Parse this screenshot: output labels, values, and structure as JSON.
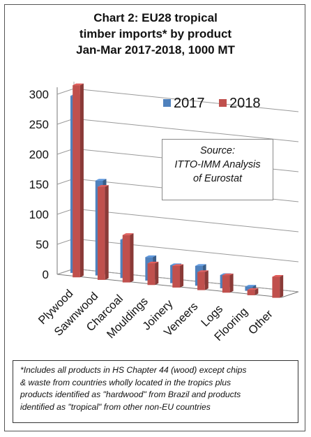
{
  "chart_data": {
    "type": "bar",
    "title_lines": [
      "Chart 2: EU28 tropical",
      "timber imports* by product",
      "Jan-Mar 2017-2018, 1000 MT"
    ],
    "categories": [
      "Plywood",
      "Sawnwood",
      "Charcoal",
      "Mouldings",
      "Joinery",
      "Veneers",
      "Logs",
      "Flooring",
      "Other"
    ],
    "series": [
      {
        "name": "2017",
        "values": [
          295,
          158,
          64,
          39,
          30,
          33,
          22,
          7,
          0
        ]
      },
      {
        "name": "2018",
        "values": [
          320,
          155,
          79,
          36,
          36,
          30,
          29,
          9,
          35
        ]
      }
    ],
    "yticks": [
      "0",
      "50",
      "100",
      "150",
      "200",
      "250",
      "300"
    ],
    "ylim": [
      0,
      300
    ],
    "colors": {
      "2017": "#4f81bd",
      "2018": "#c0504d"
    },
    "source_lines": [
      "Source:",
      "ITTO-IMM Analysis",
      "of Eurostat"
    ],
    "footnote_lines": [
      "*Includes all products in HS Chapter 44 (wood) except chips",
      "& waste from countries wholly located in the tropics plus",
      "products identified as \"hardwood\" from Brazil and products",
      "identified as \"tropical\" from other non-EU countries"
    ]
  }
}
